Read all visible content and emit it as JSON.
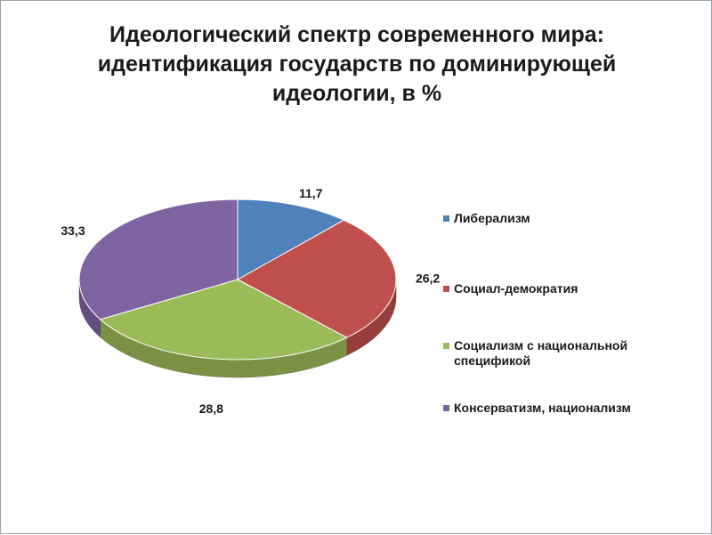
{
  "chart_data": {
    "type": "pie",
    "title_lines": [
      "Идеологический спектр современного мира:",
      "идентификация государств по доминирующей",
      "идеологии, в %"
    ],
    "slices": [
      {
        "label": "Либерализм",
        "value": 11.7,
        "value_text": "11,7",
        "color": "#4f81bd"
      },
      {
        "label": "Социал-демократия",
        "value": 26.2,
        "value_text": "26,2",
        "color": "#c0504d"
      },
      {
        "label": "Социализм с национальной спецификой",
        "value": 28.8,
        "value_text": "28,8",
        "color": "#9bbb59"
      },
      {
        "label": "Консерватизм, национализм",
        "value": 33.3,
        "value_text": "33,3",
        "color": "#8064a2"
      }
    ],
    "legend_position": "right",
    "style": "3d"
  }
}
